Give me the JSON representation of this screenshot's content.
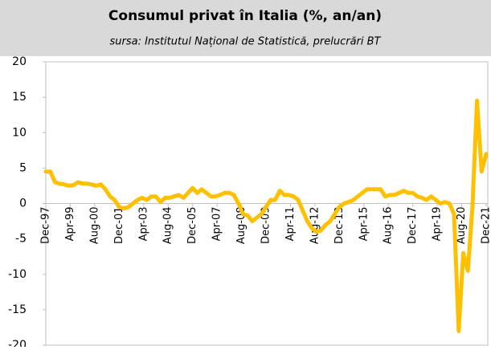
{
  "chart_data": {
    "type": "line",
    "title": "Consumul privat în Italia (%, an/an)",
    "subtitle": "sursa: Institutul Național de Statistică, prelucrări BT",
    "color": "#ffc000",
    "x": [
      0,
      3,
      6,
      9,
      12,
      15,
      18,
      21,
      24,
      27,
      30,
      33,
      36,
      39,
      42,
      45,
      48,
      51,
      54,
      57,
      60,
      63,
      66,
      69,
      72,
      75,
      78,
      81,
      84,
      87,
      90,
      93,
      96,
      99,
      102,
      105,
      108,
      111,
      114,
      117,
      120,
      123,
      126,
      129,
      132,
      135,
      138,
      141,
      144,
      147,
      150,
      153,
      156,
      159,
      162,
      165,
      168,
      171,
      174,
      177,
      180,
      183,
      186,
      189,
      192,
      195,
      198,
      201,
      204,
      207,
      210,
      213,
      216,
      219,
      222,
      225,
      228,
      231,
      234,
      237,
      240,
      243,
      246,
      249,
      252,
      255,
      258,
      261,
      264,
      267,
      270,
      273,
      276,
      279,
      282,
      285,
      288
    ],
    "values": [
      4.5,
      4.5,
      3,
      2.8,
      2.7,
      2.5,
      2.6,
      3.0,
      2.8,
      2.8,
      2.7,
      2.5,
      2.7,
      2.0,
      1.0,
      0.5,
      -0.5,
      -0.7,
      -0.5,
      0,
      0.5,
      0.8,
      0.5,
      1.0,
      1.0,
      0.2,
      0.8,
      0.8,
      1.0,
      1.2,
      0.8,
      1.5,
      2.2,
      1.5,
      2.0,
      1.5,
      1.0,
      1.0,
      1.2,
      1.5,
      1.5,
      1.2,
      0,
      -1.5,
      -1.7,
      -2.5,
      -2.0,
      -1.5,
      -0.5,
      0.5,
      0.5,
      1.8,
      1.2,
      1.2,
      1.0,
      0.5,
      -1.0,
      -2.5,
      -3.5,
      -4.0,
      -3.8,
      -3,
      -2.5,
      -1.5,
      -0.5,
      0,
      0.2,
      0.5,
      1.0,
      1.5,
      2.0,
      2.0,
      2.0,
      2.0,
      1.0,
      1.2,
      1.2,
      1.5,
      1.8,
      1.5,
      1.5,
      1.0,
      0.8,
      0.5,
      1.0,
      0.5,
      0,
      0.2,
      0,
      -1.5,
      -18,
      -7,
      -9.5,
      -0.5,
      14.5,
      4.5,
      7.0
    ],
    "xlim": [
      0,
      288
    ],
    "xticks": [
      {
        "value": 0,
        "label": "Dec-97"
      },
      {
        "value": 16,
        "label": "Apr-99"
      },
      {
        "value": 32,
        "label": "Aug-00"
      },
      {
        "value": 48,
        "label": "Dec-01"
      },
      {
        "value": 64,
        "label": "Apr-03"
      },
      {
        "value": 80,
        "label": "Aug-04"
      },
      {
        "value": 96,
        "label": "Dec-05"
      },
      {
        "value": 112,
        "label": "Apr-07"
      },
      {
        "value": 128,
        "label": "Aug-08"
      },
      {
        "value": 144,
        "label": "Dec-09"
      },
      {
        "value": 160,
        "label": "Apr-11"
      },
      {
        "value": 176,
        "label": "Aug-12"
      },
      {
        "value": 192,
        "label": "Dec-13"
      },
      {
        "value": 208,
        "label": "Apr-15"
      },
      {
        "value": 224,
        "label": "Aug-16"
      },
      {
        "value": 240,
        "label": "Dec-17"
      },
      {
        "value": 256,
        "label": "Apr-19"
      },
      {
        "value": 272,
        "label": "Aug-20"
      },
      {
        "value": 288,
        "label": "Dec-21"
      }
    ],
    "ylim": [
      -20,
      20
    ],
    "yticks": [
      -20,
      -15,
      -10,
      -5,
      0,
      5,
      10,
      15,
      20
    ],
    "grid": false
  }
}
